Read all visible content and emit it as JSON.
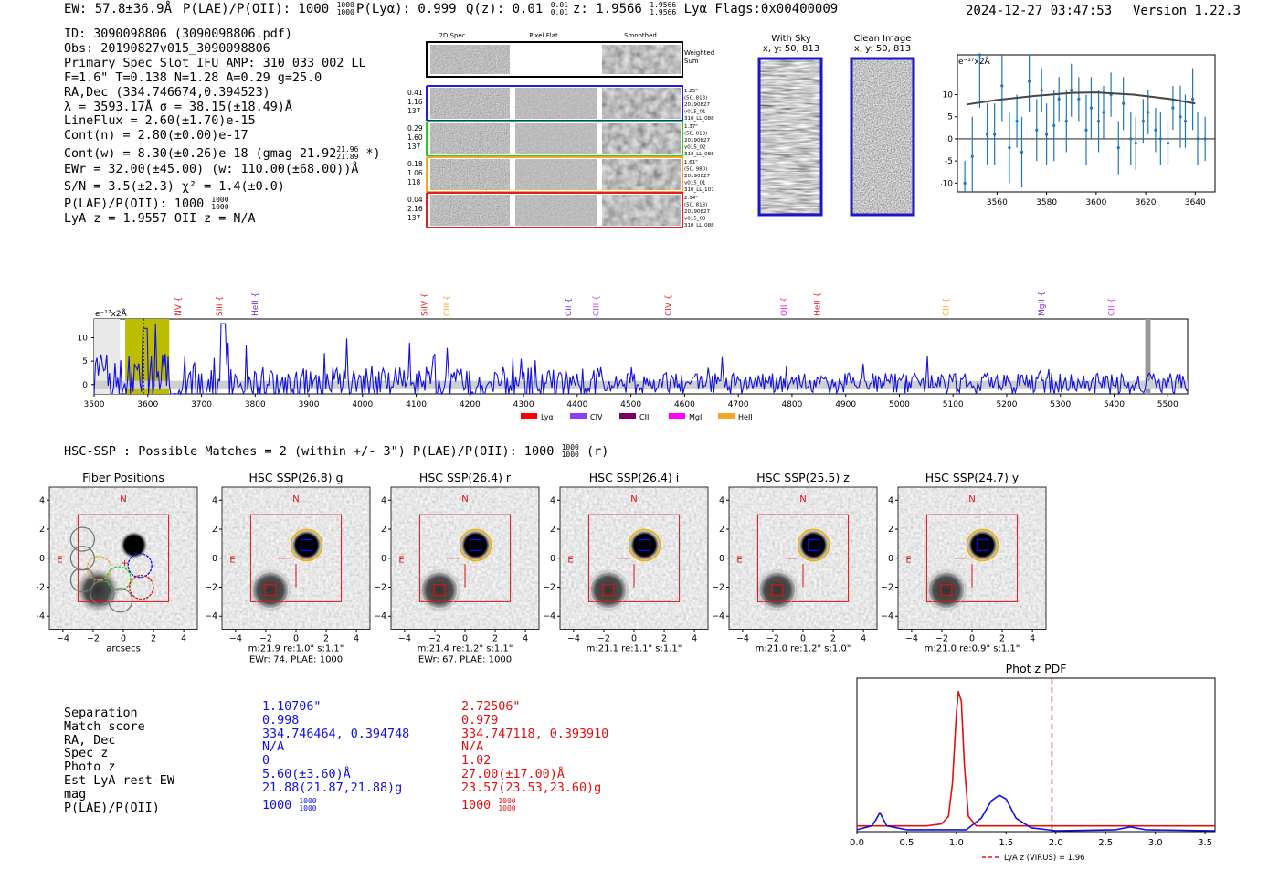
{
  "header": {
    "ew": "EW: 57.8±36.9Å",
    "plae_label": "P(LAE)/P(OII): 1000",
    "plae_hi": "1000",
    "plae_lo": "1000",
    "plya": "P(Lyα): 0.999",
    "qz": "Q(z): 0.01",
    "qz_hi": "0.01",
    "qz_lo": "0.01",
    "z": "z: 1.9566",
    "z_hi": "1.9566",
    "z_lo": "1.9566",
    "lya_flags": "Lyα  Flags:0x00400009",
    "date": "2024-12-27 03:47:53",
    "version": "Version 1.22.3"
  },
  "info": {
    "id": "ID: 3090098806 (3090098806.pdf)",
    "obs": "Obs: 20190827v015_3090098806",
    "primary": "Primary Spec_Slot_IFU_AMP: 310_033_002_LL",
    "fwhm": "F=1.6\"  T=0.138  N=1.28  A=0.29  g=25.0",
    "radec": "RA,Dec (334.746674,0.394523)",
    "lambda": "λ = 3593.17Å  σ = 38.15(±18.49)Å",
    "lineflux": "LineFlux = 2.60(±1.70)e-15",
    "contn": "Cont(n) = 2.80(±0.00)e-17",
    "contw": "Cont(w) = 8.30(±0.26)e-18 (gmag 21.92",
    "contw_hi": "21.96",
    "contw_lo": "21.89",
    "contw_end": "*)",
    "ewr": "EWr = 32.00(±45.00) (w: 110.00(±68.00))Å",
    "sn": "S/N = 3.5(±2.3)  χ² = 1.4(±0.0)",
    "plae": "P(LAE)/P(OII): 1000",
    "plae_hi": "1000",
    "plae_lo": "1000",
    "lyaz": "LyA z = 1.9557  OII z = N/A"
  },
  "cutouts": {
    "col_2d": "2D Spec",
    "col_flat": "Pixel Flat",
    "col_smooth": "Smoothed",
    "weighted": "Weighted Sum",
    "rows": [
      {
        "color": "#1f1fd6",
        "left": [
          "0.41",
          "1.16",
          "137"
        ],
        "right": [
          "1.25\"",
          "(50, 813)",
          "20190827",
          "v015_01",
          "310_LL_088"
        ]
      },
      {
        "color": "#22cc22",
        "left": [
          "0.29",
          "1.60",
          "137"
        ],
        "right": [
          "1.37\"",
          "(50, 813)",
          "20190827",
          "v015_02",
          "310_LL_088"
        ]
      },
      {
        "color": "#f5a623",
        "left": [
          "0.18",
          "1.06",
          "118"
        ],
        "right": [
          "1.61\"",
          "(50, 980)",
          "20190827",
          "v015_01",
          "310_LL_107"
        ]
      },
      {
        "color": "#e02020",
        "left": [
          "0.04",
          "2.16",
          "137"
        ],
        "right": [
          "2.34\"",
          "(50, 813)",
          "20190827",
          "v015_03",
          "310_LL_088"
        ]
      }
    ],
    "with_sky_title": "With Sky",
    "with_sky_xy": "x, y: 50, 813",
    "clean_title": "Clean Image",
    "clean_xy": "x, y: 50, 813"
  },
  "zoom_spectrum": {
    "unit": "e⁻¹⁷x2Å",
    "x_ticks": [
      "3560",
      "3580",
      "3600",
      "3620",
      "3640"
    ],
    "y_ticks": [
      "-10",
      "-5",
      "0",
      "5",
      "10"
    ],
    "points": [
      {
        "x": 3547,
        "y": -10,
        "e": 5
      },
      {
        "x": 3550,
        "y": -4,
        "e": 9
      },
      {
        "x": 3553,
        "y": 19,
        "e": 12
      },
      {
        "x": 3556,
        "y": 1,
        "e": 7
      },
      {
        "x": 3559,
        "y": 1,
        "e": 7
      },
      {
        "x": 3562,
        "y": 12,
        "e": 8
      },
      {
        "x": 3565,
        "y": -2,
        "e": 8
      },
      {
        "x": 3568,
        "y": 4,
        "e": 6
      },
      {
        "x": 3570,
        "y": -3,
        "e": 8
      },
      {
        "x": 3573,
        "y": 13,
        "e": 7
      },
      {
        "x": 3576,
        "y": 2,
        "e": 7
      },
      {
        "x": 3578,
        "y": 11,
        "e": 5
      },
      {
        "x": 3580,
        "y": 1,
        "e": 7
      },
      {
        "x": 3583,
        "y": 3,
        "e": 8
      },
      {
        "x": 3585,
        "y": 9,
        "e": 5
      },
      {
        "x": 3588,
        "y": 4,
        "e": 7
      },
      {
        "x": 3590,
        "y": 11,
        "e": 6
      },
      {
        "x": 3593,
        "y": 9,
        "e": 5
      },
      {
        "x": 3596,
        "y": 2,
        "e": 8
      },
      {
        "x": 3598,
        "y": 7,
        "e": 7
      },
      {
        "x": 3601,
        "y": 4,
        "e": 7
      },
      {
        "x": 3603,
        "y": 6,
        "e": 6
      },
      {
        "x": 3606,
        "y": 10,
        "e": 5
      },
      {
        "x": 3609,
        "y": -2,
        "e": 6
      },
      {
        "x": 3611,
        "y": 8,
        "e": 6
      },
      {
        "x": 3614,
        "y": 0,
        "e": 6
      },
      {
        "x": 3616,
        "y": -1,
        "e": 6
      },
      {
        "x": 3619,
        "y": 4,
        "e": 5
      },
      {
        "x": 3621,
        "y": 6,
        "e": 5
      },
      {
        "x": 3624,
        "y": 2,
        "e": 5
      },
      {
        "x": 3626,
        "y": 0,
        "e": 6
      },
      {
        "x": 3629,
        "y": -1,
        "e": 5
      },
      {
        "x": 3631,
        "y": 7,
        "e": 5
      },
      {
        "x": 3634,
        "y": 5,
        "e": 7
      },
      {
        "x": 3636,
        "y": 4,
        "e": 6
      },
      {
        "x": 3639,
        "y": 9,
        "e": 7
      },
      {
        "x": 3641,
        "y": 0,
        "e": 6
      },
      {
        "x": 3644,
        "y": 0,
        "e": 5
      }
    ],
    "fit": [
      [
        3548,
        7.8
      ],
      [
        3560,
        8.8
      ],
      [
        3575,
        9.7
      ],
      [
        3590,
        10.4
      ],
      [
        3600,
        10.5
      ],
      [
        3615,
        10.0
      ],
      [
        3630,
        9.0
      ],
      [
        3640,
        8.0
      ]
    ]
  },
  "full_spectrum": {
    "unit": "e⁻¹⁷x2Å",
    "x_ticks": [
      "3500",
      "3600",
      "3700",
      "3800",
      "3900",
      "4000",
      "4100",
      "4200",
      "4300",
      "4400",
      "4500",
      "4600",
      "4700",
      "4800",
      "4900",
      "5000",
      "5100",
      "5200",
      "5300",
      "5400",
      "5500"
    ],
    "y_ticks": [
      "0",
      "5",
      "10"
    ],
    "lines": [
      {
        "name": "NV",
        "x": 3662,
        "color": "#e02020"
      },
      {
        "name": "SiII",
        "x": 3738,
        "color": "#e02020"
      },
      {
        "name": "HeII",
        "x": 3805,
        "color": "#7b2fd0"
      },
      {
        "name": "SiIV",
        "x": 4120,
        "color": "#e02020"
      },
      {
        "name": "CIII",
        "x": 4162,
        "color": "#f5a623"
      },
      {
        "name": "CII",
        "x": 4388,
        "color": "#7b2fd0"
      },
      {
        "name": "CIII",
        "x": 4440,
        "color": "#c040f0"
      },
      {
        "name": "CIV",
        "x": 4575,
        "color": "#e02020"
      },
      {
        "name": "OII",
        "x": 4790,
        "color": "#e020e0"
      },
      {
        "name": "HeII",
        "x": 4852,
        "color": "#e02020"
      },
      {
        "name": "CII",
        "x": 5092,
        "color": "#f5a623"
      },
      {
        "name": "MgII",
        "x": 5270,
        "color": "#7b2fd0"
      },
      {
        "name": "CII",
        "x": 5400,
        "color": "#c040f0"
      }
    ],
    "legend": [
      {
        "label": "Lyα",
        "color": "#ff0000"
      },
      {
        "label": "CIV",
        "color": "#8a3ffc"
      },
      {
        "label": "CIII",
        "color": "#800060"
      },
      {
        "label": "MgII",
        "color": "#ff00ff"
      },
      {
        "label": "HeII",
        "color": "#f5a623"
      }
    ]
  },
  "hsc": {
    "heading": "HSC-SSP : Possible Matches = 2 (within +/- 3\")  P(LAE)/P(OII): 1000",
    "heading_hi": "1000",
    "heading_lo": "1000",
    "heading_end": "(r)",
    "ticks": [
      "-4",
      "-2",
      "0",
      "2",
      "4"
    ],
    "panels": [
      {
        "title": "Fiber Positions",
        "caption1": "arcsecs",
        "caption2": ""
      },
      {
        "title": "HSC SSP(26.8) g",
        "caption1": "m:21.9  re:1.0\"  s:1.1\"",
        "caption2": "EWr: 74. PLAE: 1000"
      },
      {
        "title": "HSC SSP(26.4) r",
        "caption1": "m:21.4  re:1.2\"  s:1.1\"",
        "caption2": "EWr: 67. PLAE: 1000"
      },
      {
        "title": "HSC SSP(26.4) i",
        "caption1": "m:21.1  re:1.1\"  s:1.1\"",
        "caption2": ""
      },
      {
        "title": "HSC SSP(25.5) z",
        "caption1": "m:21.0  re:1.2\"  s:1.0\"",
        "caption2": ""
      },
      {
        "title": "HSC SSP(24.7) y",
        "caption1": "m:21.0  re:0.9\"  s:1.1\"",
        "caption2": ""
      }
    ],
    "north": "N",
    "east": "E"
  },
  "matches": {
    "labels": [
      "Separation",
      "Match score",
      "RA, Dec",
      "Spec z",
      "Photo z",
      "Est LyA rest-EW",
      "mag",
      "P(LAE)/P(OII)"
    ],
    "blue": [
      "1.10706\"",
      "0.998",
      "334.746464, 0.394748",
      "N/A",
      "0",
      "5.60(±3.60)Å",
      "21.88(21.87,21.88)g",
      "1000"
    ],
    "red": [
      "2.72506\"",
      "0.979",
      "334.747118, 0.393910",
      "N/A",
      "1.02",
      "27.00(±17.00)Å",
      "23.57(23.53,23.60)g",
      "1000"
    ],
    "plae_hi": "1000",
    "plae_lo": "1000",
    "blue_color": "#1010e0",
    "red_color": "#e01010"
  },
  "photz": {
    "title": "Phot z PDF",
    "x_ticks": [
      "0.0",
      "0.5",
      "1.0",
      "1.5",
      "2.0",
      "2.5",
      "3.0",
      "3.5"
    ],
    "legend": "LyA z (VIRUS) = 1.96",
    "lya_z": 1.96,
    "red_curve": [
      [
        0,
        0.03
      ],
      [
        0.7,
        0.03
      ],
      [
        0.85,
        0.04
      ],
      [
        0.92,
        0.08
      ],
      [
        0.96,
        0.25
      ],
      [
        1.0,
        0.62
      ],
      [
        1.02,
        0.73
      ],
      [
        1.05,
        0.68
      ],
      [
        1.08,
        0.35
      ],
      [
        1.12,
        0.08
      ],
      [
        1.2,
        0.03
      ],
      [
        3.6,
        0.03
      ]
    ],
    "blue_curve": [
      [
        0,
        0.01
      ],
      [
        0.15,
        0.03
      ],
      [
        0.2,
        0.07
      ],
      [
        0.23,
        0.1
      ],
      [
        0.26,
        0.07
      ],
      [
        0.3,
        0.03
      ],
      [
        0.5,
        0.01
      ],
      [
        1.1,
        0.01
      ],
      [
        1.25,
        0.07
      ],
      [
        1.35,
        0.16
      ],
      [
        1.43,
        0.19
      ],
      [
        1.5,
        0.17
      ],
      [
        1.6,
        0.07
      ],
      [
        1.75,
        0.02
      ],
      [
        2.0,
        0.005
      ],
      [
        2.6,
        0.01
      ],
      [
        2.75,
        0.025
      ],
      [
        2.9,
        0.01
      ],
      [
        3.6,
        0.005
      ]
    ]
  }
}
